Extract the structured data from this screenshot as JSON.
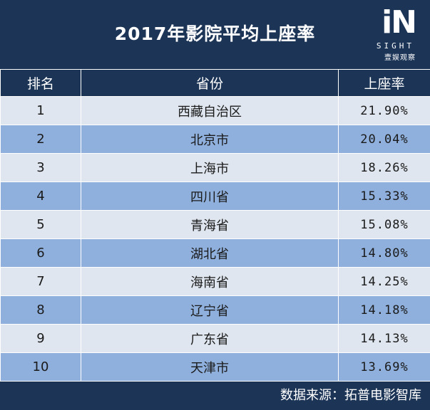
{
  "header": {
    "title": "2017年影院平均上座率",
    "logo_mark": "iN",
    "logo_sub": "SIGHT",
    "logo_cn": "壹娱观察"
  },
  "table": {
    "columns": [
      "排名",
      "省份",
      "上座率"
    ],
    "rows": [
      {
        "rank": "1",
        "province": "西藏自治区",
        "rate": "21.90%"
      },
      {
        "rank": "2",
        "province": "北京市",
        "rate": "20.04%"
      },
      {
        "rank": "3",
        "province": "上海市",
        "rate": "18.26%"
      },
      {
        "rank": "4",
        "province": "四川省",
        "rate": "15.33%"
      },
      {
        "rank": "5",
        "province": "青海省",
        "rate": "15.08%"
      },
      {
        "rank": "6",
        "province": "湖北省",
        "rate": "14.80%"
      },
      {
        "rank": "7",
        "province": "海南省",
        "rate": "14.25%"
      },
      {
        "rank": "8",
        "province": "辽宁省",
        "rate": "14.18%"
      },
      {
        "rank": "9",
        "province": "广东省",
        "rate": "14.13%"
      },
      {
        "rank": "10",
        "province": "天津市",
        "rate": "13.69%"
      }
    ]
  },
  "footer": {
    "source": "数据来源：拓普电影智库"
  },
  "colors": {
    "header_bg": "#1c3557",
    "row_light": "#dfe6ef",
    "row_dark": "#8fb0dc"
  }
}
